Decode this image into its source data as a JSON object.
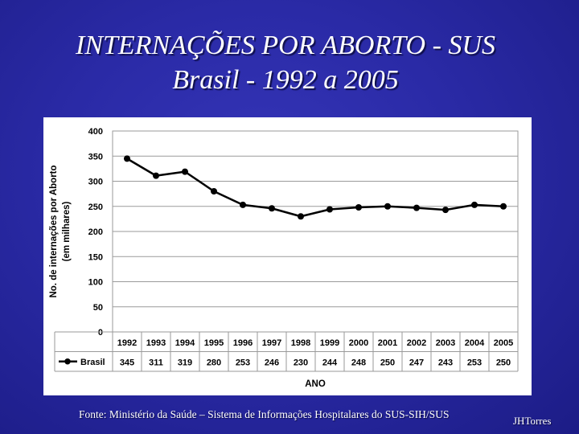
{
  "slide": {
    "title_line1": "INTERNAÇÕES POR ABORTO - SUS",
    "title_line2": "Brasil  -  1992 a 2005",
    "source": "Fonte: Ministério da Saúde – Sistema de Informações Hospitalares do SUS-SIH/SUS",
    "author": "JHTorres"
  },
  "colors": {
    "background": "#2a2aa6",
    "series": "#000000",
    "grid": "#9a9a9a"
  },
  "chart_data": {
    "type": "line",
    "title": "",
    "xlabel": "ANO",
    "ylabel_line1": "No. de internações por Aborto",
    "ylabel_line2": "(em milhares)",
    "ylim": [
      0,
      400
    ],
    "yticks": [
      0,
      50,
      100,
      150,
      200,
      250,
      300,
      350,
      400
    ],
    "grid": true,
    "legend": "table-left",
    "categories": [
      "1992",
      "1993",
      "1994",
      "1995",
      "1996",
      "1997",
      "1998",
      "1999",
      "2000",
      "2001",
      "2002",
      "2003",
      "2004",
      "2005"
    ],
    "series": [
      {
        "name": "Brasil",
        "values": [
          345,
          311,
          319,
          280,
          253,
          246,
          230,
          244,
          248,
          250,
          247,
          243,
          253,
          250
        ]
      }
    ]
  }
}
